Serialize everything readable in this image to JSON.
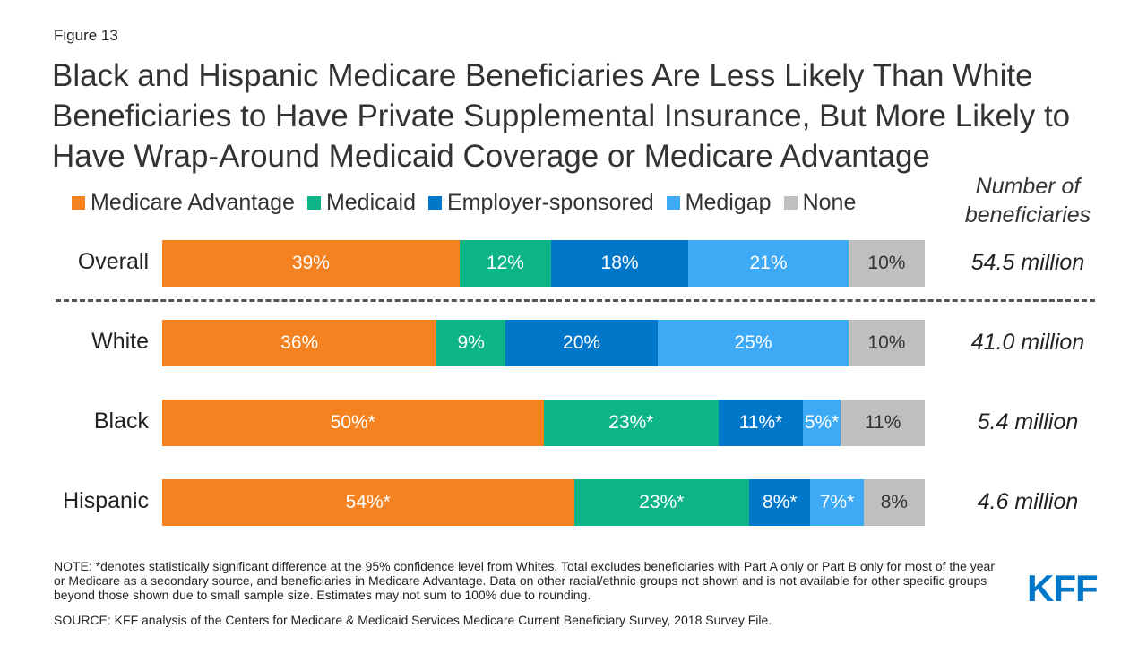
{
  "figure_label": "Figure 13",
  "title": "Black and Hispanic Medicare Beneficiaries Are Less Likely Than White Beneficiaries to Have Private Supplemental Insurance, But More Likely to Have Wrap-Around Medicaid Coverage or Medicare Advantage",
  "number_header": "Number of beneficiaries",
  "logo_text": "KFF",
  "colors": {
    "Medicare Advantage": "#F58220",
    "Medicaid": "#0CB488",
    "Employer-sponsored": "#0077C8",
    "Medigap": "#3EA9F5",
    "None": "#BFBFBF",
    "logo": "#0077C8"
  },
  "chart_data": {
    "type": "bar",
    "orientation": "horizontal",
    "stacked": true,
    "normalized": true,
    "legend_position": "top",
    "series_names": [
      "Medicare Advantage",
      "Medicaid",
      "Employer-sponsored",
      "Medigap",
      "None"
    ],
    "rows": [
      {
        "label": "Overall",
        "count": "54.5 million",
        "values": [
          39,
          12,
          18,
          21,
          10
        ],
        "labels": [
          "39%",
          "12%",
          "18%",
          "21%",
          "10%"
        ]
      },
      {
        "label": "White",
        "count": "41.0 million",
        "values": [
          36,
          9,
          20,
          25,
          10
        ],
        "labels": [
          "36%",
          "9%",
          "20%",
          "25%",
          "10%"
        ]
      },
      {
        "label": "Black",
        "count": "5.4 million",
        "values": [
          50,
          23,
          11,
          5,
          11
        ],
        "labels": [
          "50%*",
          "23%*",
          "11%*",
          "5%*",
          "11%"
        ]
      },
      {
        "label": "Hispanic",
        "count": "4.6 million",
        "values": [
          54,
          23,
          8,
          7,
          8
        ],
        "labels": [
          "54%*",
          "23%*",
          "8%*",
          "7%*",
          "8%"
        ]
      }
    ]
  },
  "note": "NOTE: *denotes statistically significant difference at the 95% confidence level from Whites. Total excludes beneficiaries with Part A only or Part B only for most of the year or Medicare as a secondary source, and beneficiaries in Medicare Advantage. Data on other racial/ethnic groups not shown and is not available for other specific groups beyond those shown due to small sample size. Estimates may not sum to 100% due to rounding.",
  "source": "SOURCE: KFF analysis of the Centers for Medicare & Medicaid Services Medicare Current Beneficiary Survey, 2018 Survey File."
}
